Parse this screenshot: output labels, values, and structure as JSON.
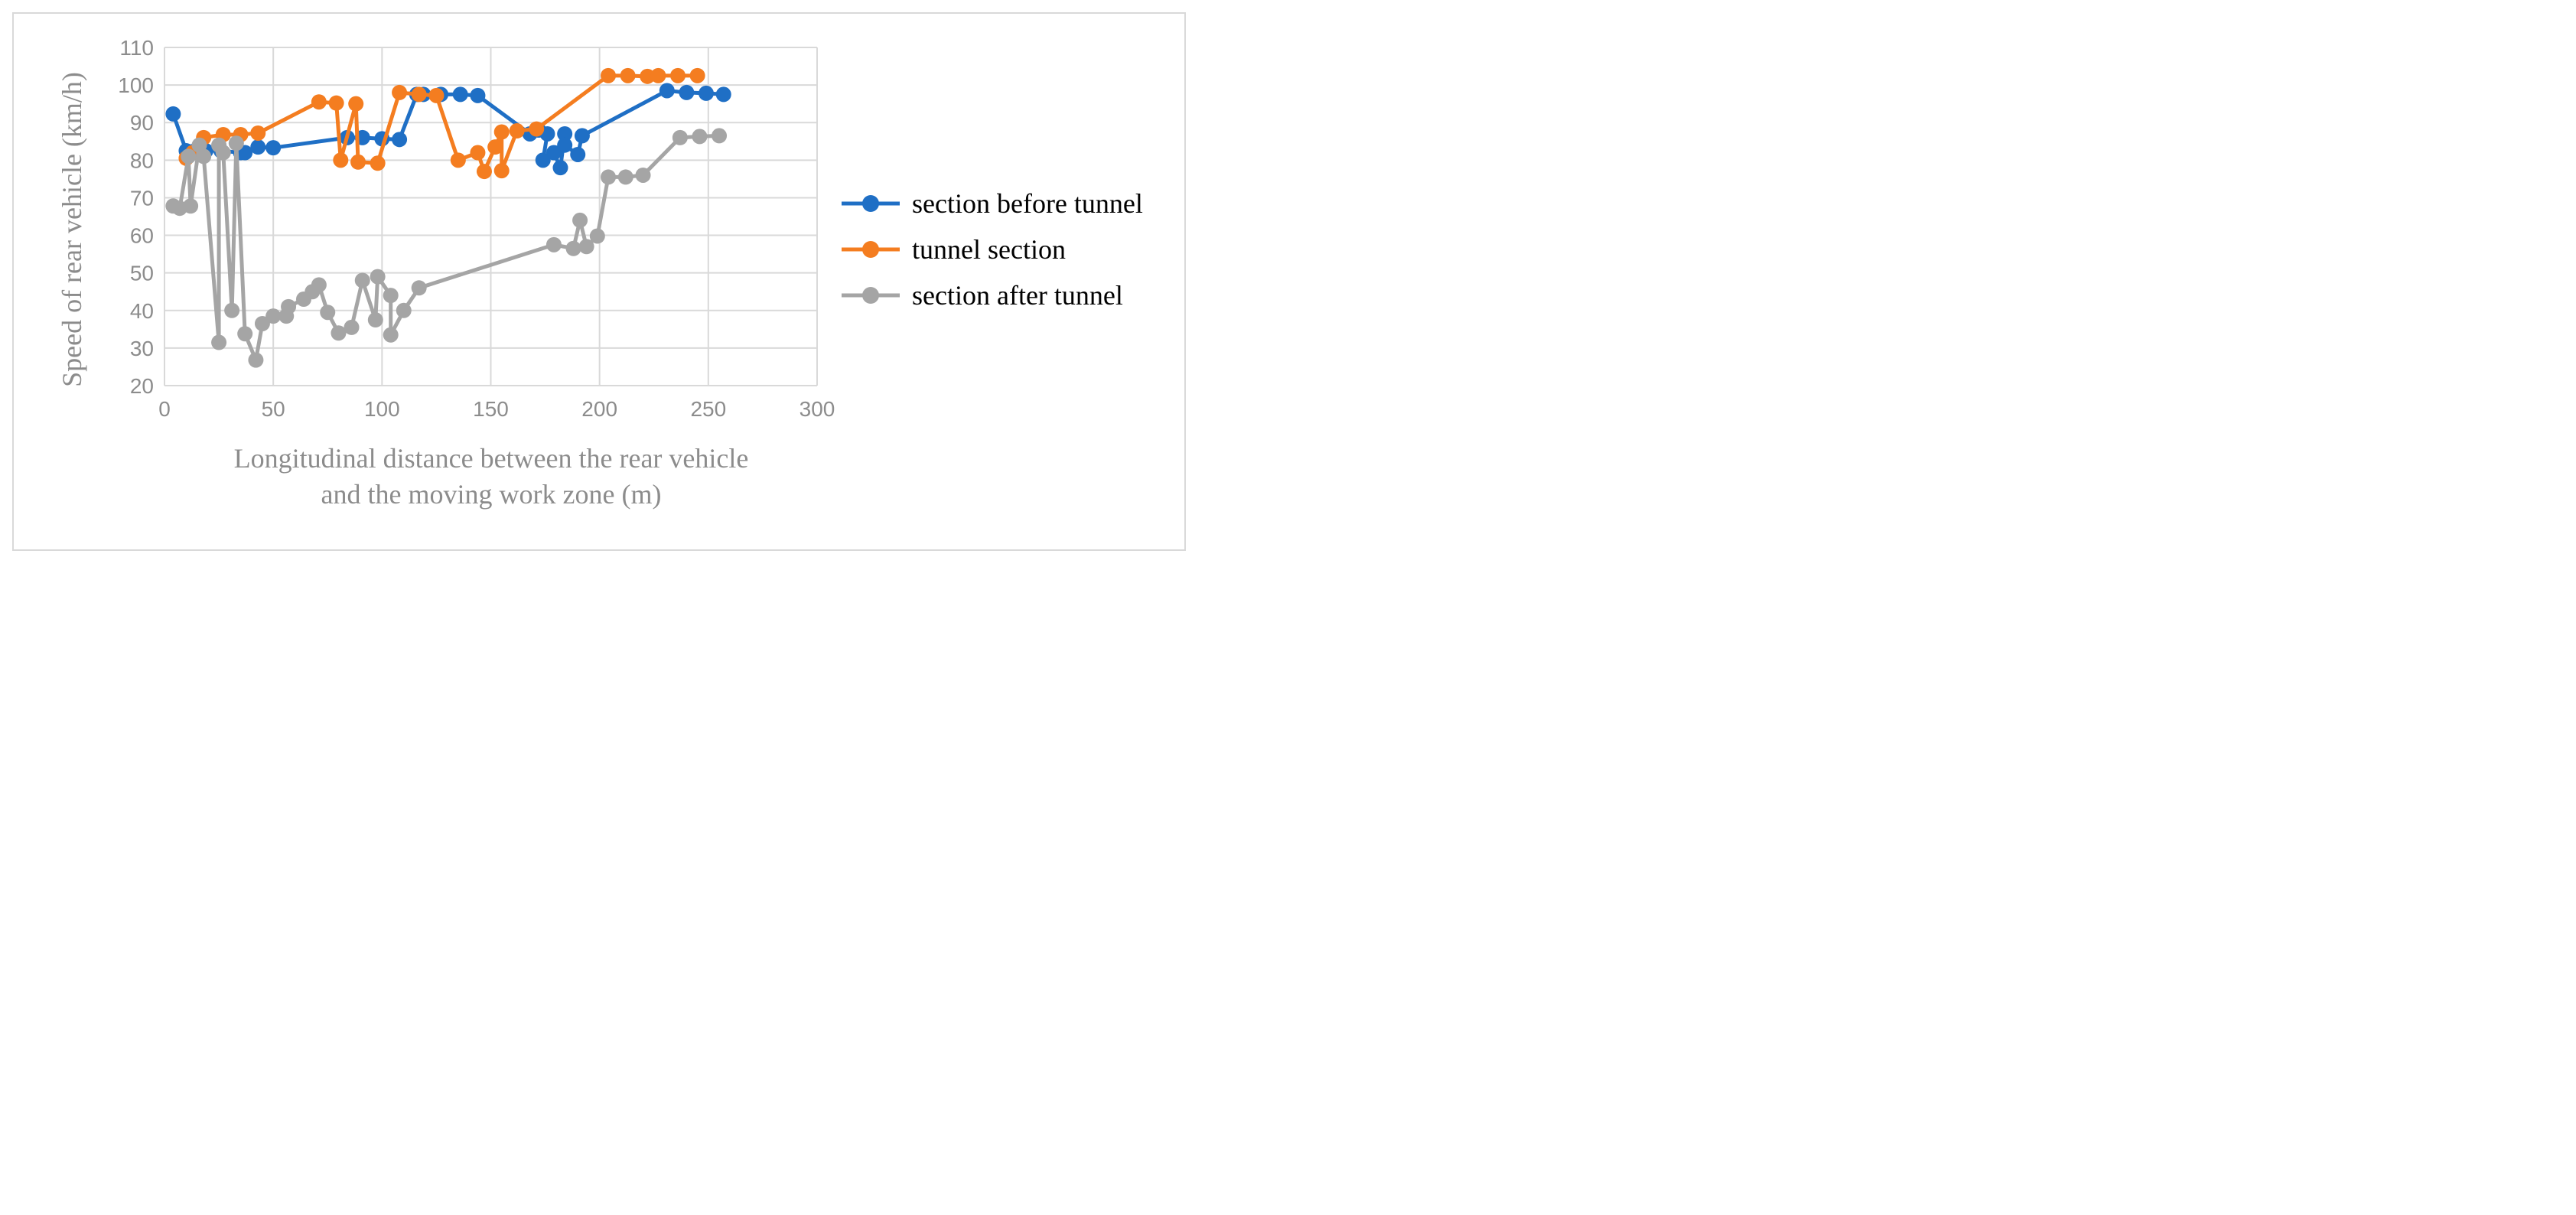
{
  "chart_data": {
    "type": "scatter",
    "mode": "lines+markers",
    "xlabel": "Longitudinal distance between the rear vehicle and the moving work zone (m)",
    "xlabel_lines": [
      "Longitudinal distance between the rear vehicle",
      "and the moving work zone (m)"
    ],
    "ylabel": "Speed of rear vehicle (km/h)",
    "xlim": [
      0,
      300
    ],
    "ylim": [
      20,
      110
    ],
    "xticks": [
      "0",
      "50",
      "100",
      "150",
      "200",
      "250",
      "300"
    ],
    "yticks": [
      "20",
      "30",
      "40",
      "50",
      "60",
      "70",
      "80",
      "90",
      "100",
      "110"
    ],
    "grid": true,
    "legend_position": "right",
    "series": [
      {
        "name": "section before tunnel",
        "color": "#1f6fc5",
        "points": [
          [
            4,
            92.3
          ],
          [
            10,
            82.5
          ],
          [
            14,
            82.5
          ],
          [
            19,
            82.5
          ],
          [
            26,
            82.5
          ],
          [
            35,
            82
          ],
          [
            37,
            82
          ],
          [
            43,
            83.5
          ],
          [
            50,
            83.3
          ],
          [
            84,
            86
          ],
          [
            91,
            86
          ],
          [
            100,
            85.7
          ],
          [
            108,
            85.5
          ],
          [
            116,
            97.5
          ],
          [
            119,
            97.5
          ],
          [
            127,
            97.5
          ],
          [
            136,
            97.5
          ],
          [
            144,
            97.2
          ],
          [
            168,
            87
          ],
          [
            172,
            88
          ],
          [
            176,
            87
          ],
          [
            174,
            80
          ],
          [
            179,
            82
          ],
          [
            182,
            78
          ],
          [
            184,
            87
          ],
          [
            184,
            84
          ],
          [
            190,
            81.5
          ],
          [
            192,
            86.5
          ],
          [
            231,
            98.5
          ],
          [
            240,
            98
          ],
          [
            249,
            97.8
          ],
          [
            257,
            97.5
          ]
        ]
      },
      {
        "name": "tunnel section",
        "color": "#f47d20",
        "points": [
          [
            10,
            80.5
          ],
          [
            13,
            82
          ],
          [
            18,
            86
          ],
          [
            27,
            86.8
          ],
          [
            35,
            86.8
          ],
          [
            43,
            87.2
          ],
          [
            71,
            95.5
          ],
          [
            79,
            95.2
          ],
          [
            81,
            80
          ],
          [
            88,
            95
          ],
          [
            89,
            79.5
          ],
          [
            98,
            79.2
          ],
          [
            108,
            98
          ],
          [
            117,
            97.5
          ],
          [
            125,
            97.2
          ],
          [
            135,
            80
          ],
          [
            144,
            82
          ],
          [
            147,
            77
          ],
          [
            152,
            83.5
          ],
          [
            155,
            87.5
          ],
          [
            155,
            77.2
          ],
          [
            162,
            87.8
          ],
          [
            171,
            88.3
          ],
          [
            204,
            102.5
          ],
          [
            213,
            102.5
          ],
          [
            222,
            102.3
          ],
          [
            227,
            102.5
          ],
          [
            236,
            102.5
          ],
          [
            245,
            102.5
          ]
        ]
      },
      {
        "name": "section after tunnel",
        "color": "#a5a5a5",
        "points": [
          [
            4,
            67.8
          ],
          [
            7,
            67.2
          ],
          [
            11,
            81
          ],
          [
            12,
            67.8
          ],
          [
            16,
            84
          ],
          [
            18,
            81
          ],
          [
            25,
            31.5
          ],
          [
            25,
            84
          ],
          [
            27,
            82
          ],
          [
            31,
            40
          ],
          [
            33,
            84.5
          ],
          [
            37,
            33.8
          ],
          [
            42,
            26.8
          ],
          [
            45,
            36.5
          ],
          [
            50,
            38.5
          ],
          [
            56,
            38.5
          ],
          [
            57,
            41
          ],
          [
            64,
            43
          ],
          [
            68,
            45
          ],
          [
            71,
            46.8
          ],
          [
            75,
            39.5
          ],
          [
            80,
            34
          ],
          [
            86,
            35.5
          ],
          [
            91,
            48
          ],
          [
            97,
            37.5
          ],
          [
            98,
            49
          ],
          [
            104,
            44
          ],
          [
            104,
            33.5
          ],
          [
            110,
            40
          ],
          [
            117,
            46
          ],
          [
            179,
            57.5
          ],
          [
            188,
            56.5
          ],
          [
            191,
            64
          ],
          [
            194,
            57
          ],
          [
            199,
            59.8
          ],
          [
            204,
            75.5
          ],
          [
            212,
            75.5
          ],
          [
            220,
            76
          ],
          [
            237,
            86
          ],
          [
            246,
            86.3
          ],
          [
            255,
            86.5
          ]
        ]
      }
    ]
  }
}
